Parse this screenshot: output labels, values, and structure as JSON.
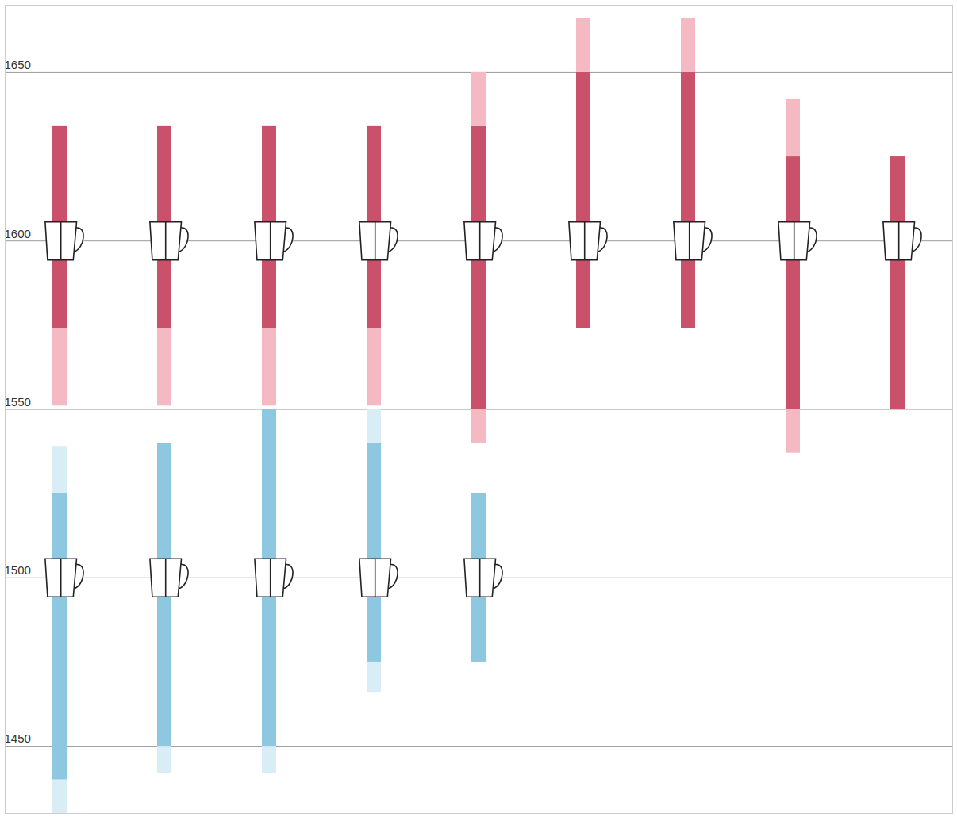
{
  "chart_data": {
    "type": "range",
    "ylim": [
      1430,
      1670
    ],
    "yticks": [
      1450,
      1500,
      1550,
      1600,
      1650
    ],
    "grid": true,
    "tick_labels": "y",
    "groups": [
      {
        "reference_year": 1600,
        "items": [
          {
            "segments": [
              {
                "start": 1551,
                "end": 1574,
                "color": "#f4b9c3"
              },
              {
                "start": 1574,
                "end": 1634,
                "color": "#c9516a"
              }
            ]
          },
          {
            "segments": [
              {
                "start": 1551,
                "end": 1574,
                "color": "#f4b9c3"
              },
              {
                "start": 1574,
                "end": 1634,
                "color": "#c9516a"
              }
            ]
          },
          {
            "segments": [
              {
                "start": 1551,
                "end": 1574,
                "color": "#f4b9c3"
              },
              {
                "start": 1574,
                "end": 1634,
                "color": "#c9516a"
              }
            ]
          },
          {
            "segments": [
              {
                "start": 1551,
                "end": 1574,
                "color": "#f4b9c3"
              },
              {
                "start": 1574,
                "end": 1634,
                "color": "#c9516a"
              }
            ]
          },
          {
            "segments": [
              {
                "start": 1540,
                "end": 1550,
                "color": "#f4b9c3"
              },
              {
                "start": 1550,
                "end": 1634,
                "color": "#c9516a"
              },
              {
                "start": 1634,
                "end": 1650,
                "color": "#f4b9c3"
              }
            ]
          },
          {
            "segments": [
              {
                "start": 1574,
                "end": 1650,
                "color": "#c9516a"
              },
              {
                "start": 1650,
                "end": 1666,
                "color": "#f4b9c3"
              }
            ]
          },
          {
            "segments": [
              {
                "start": 1574,
                "end": 1650,
                "color": "#c9516a"
              },
              {
                "start": 1650,
                "end": 1666,
                "color": "#f4b9c3"
              }
            ]
          },
          {
            "segments": [
              {
                "start": 1537,
                "end": 1550,
                "color": "#f4b9c3"
              },
              {
                "start": 1550,
                "end": 1625,
                "color": "#c9516a"
              },
              {
                "start": 1625,
                "end": 1642,
                "color": "#f4b9c3"
              }
            ]
          },
          {
            "segments": [
              {
                "start": 1550,
                "end": 1625,
                "color": "#c9516a"
              }
            ]
          }
        ]
      },
      {
        "reference_year": 1500,
        "items": [
          {
            "segments": [
              {
                "start": 1430,
                "end": 1440,
                "color": "#d8edf5"
              },
              {
                "start": 1440,
                "end": 1525,
                "color": "#8ec8e0"
              },
              {
                "start": 1525,
                "end": 1539,
                "color": "#d8edf5"
              }
            ]
          },
          {
            "segments": [
              {
                "start": 1442,
                "end": 1450,
                "color": "#d8edf5"
              },
              {
                "start": 1450,
                "end": 1540,
                "color": "#8ec8e0"
              }
            ]
          },
          {
            "segments": [
              {
                "start": 1442,
                "end": 1450,
                "color": "#d8edf5"
              },
              {
                "start": 1450,
                "end": 1550,
                "color": "#8ec8e0"
              }
            ]
          },
          {
            "segments": [
              {
                "start": 1466,
                "end": 1475,
                "color": "#d8edf5"
              },
              {
                "start": 1475,
                "end": 1540,
                "color": "#8ec8e0"
              },
              {
                "start": 1540,
                "end": 1550,
                "color": "#d8edf5"
              }
            ]
          },
          {
            "segments": [
              {
                "start": 1475,
                "end": 1525,
                "color": "#8ec8e0"
              }
            ]
          }
        ]
      }
    ]
  }
}
